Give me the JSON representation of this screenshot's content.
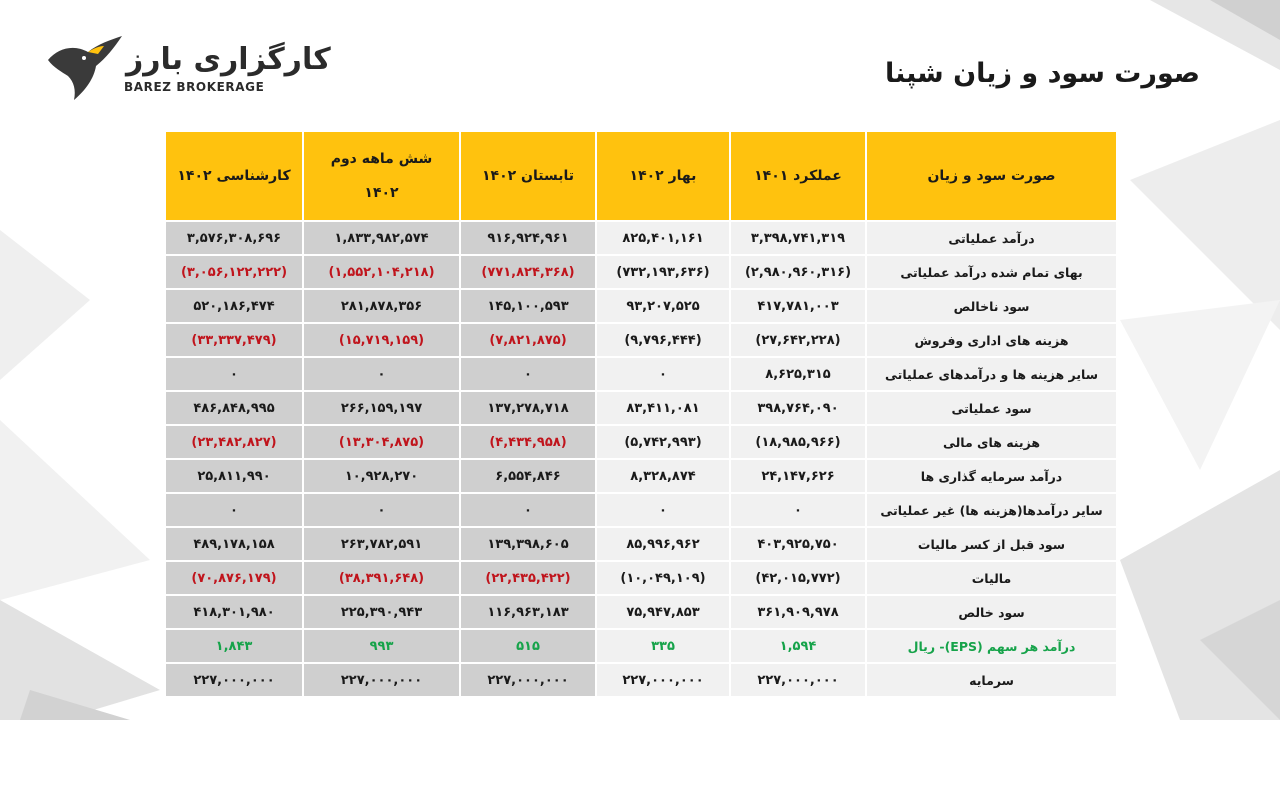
{
  "logo": {
    "name_fa": "کارگزاری بارز",
    "name_en": "BAREZ BROKERAGE"
  },
  "title": "صورت سود و زیان شپنا",
  "colors": {
    "header_bg": "#ffc20e",
    "negative": "#c0141c",
    "eps": "#16a34a",
    "shaded_cell": "#cfcfcf",
    "light_cell": "#f1f1f1"
  },
  "table": {
    "headers": {
      "label": "صورت سود و زیان",
      "col1": "عملکرد ۱۴۰۱",
      "col2": "بهار ۱۴۰۲",
      "col3": "تابستان ۱۴۰۲",
      "col4_line1": "شش ماهه دوم",
      "col4_line2": "۱۴۰۲",
      "col5": "کارشناسی ۱۴۰۲"
    },
    "rows": [
      {
        "label": "درآمد عملیاتی",
        "v1": "۳,۳۹۸,۷۴۱,۳۱۹",
        "v2": "۸۲۵,۴۰۱,۱۶۱",
        "v3": "۹۱۶,۹۲۴,۹۶۱",
        "v4": "۱,۸۳۳,۹۸۲,۵۷۴",
        "v5": "۳,۵۷۶,۳۰۸,۶۹۶"
      },
      {
        "label": "بهای تمام شده درآمد عملیاتی",
        "v1": "(۲,۹۸۰,۹۶۰,۳۱۶)",
        "v2": "(۷۳۲,۱۹۳,۶۳۶)",
        "v3": "(۷۷۱,۸۲۴,۳۶۸)",
        "v4": "(۱,۵۵۲,۱۰۴,۲۱۸)",
        "v5": "(۳,۰۵۶,۱۲۲,۲۲۲)"
      },
      {
        "label": "سود ناخالص",
        "v1": "۴۱۷,۷۸۱,۰۰۳",
        "v2": "۹۳,۲۰۷,۵۲۵",
        "v3": "۱۴۵,۱۰۰,۵۹۳",
        "v4": "۲۸۱,۸۷۸,۳۵۶",
        "v5": "۵۲۰,۱۸۶,۴۷۴"
      },
      {
        "label": "هزینه های اداری وفروش",
        "v1": "(۲۷,۶۴۲,۲۲۸)",
        "v2": "(۹,۷۹۶,۴۴۴)",
        "v3": "(۷,۸۲۱,۸۷۵)",
        "v4": "(۱۵,۷۱۹,۱۵۹)",
        "v5": "(۳۳,۳۳۷,۴۷۹)"
      },
      {
        "label": "سایر هزینه ها و درآمدهای عملیاتی",
        "v1": "۸,۶۲۵,۳۱۵",
        "v2": "۰",
        "v3": "۰",
        "v4": "۰",
        "v5": "۰"
      },
      {
        "label": "سود عملیاتی",
        "v1": "۳۹۸,۷۶۴,۰۹۰",
        "v2": "۸۳,۴۱۱,۰۸۱",
        "v3": "۱۳۷,۲۷۸,۷۱۸",
        "v4": "۲۶۶,۱۵۹,۱۹۷",
        "v5": "۴۸۶,۸۴۸,۹۹۵"
      },
      {
        "label": "هزینه های مالی",
        "v1": "(۱۸,۹۸۵,۹۶۶)",
        "v2": "(۵,۷۴۲,۹۹۳)",
        "v3": "(۴,۴۳۴,۹۵۸)",
        "v4": "(۱۳,۳۰۴,۸۷۵)",
        "v5": "(۲۳,۴۸۲,۸۲۷)"
      },
      {
        "label": "درآمد سرمایه گذاری ها",
        "v1": "۲۴,۱۴۷,۶۲۶",
        "v2": "۸,۳۲۸,۸۷۴",
        "v3": "۶,۵۵۴,۸۴۶",
        "v4": "۱۰,۹۲۸,۲۷۰",
        "v5": "۲۵,۸۱۱,۹۹۰"
      },
      {
        "label": "سایر درآمدها(هزینه ها) غیر عملیاتی",
        "v1": "۰",
        "v2": "۰",
        "v3": "۰",
        "v4": "۰",
        "v5": "۰"
      },
      {
        "label": "سود قبل از کسر مالیات",
        "v1": "۴۰۳,۹۲۵,۷۵۰",
        "v2": "۸۵,۹۹۶,۹۶۲",
        "v3": "۱۳۹,۳۹۸,۶۰۵",
        "v4": "۲۶۳,۷۸۲,۵۹۱",
        "v5": "۴۸۹,۱۷۸,۱۵۸"
      },
      {
        "label": "مالیات",
        "v1": "(۴۲,۰۱۵,۷۷۲)",
        "v2": "(۱۰,۰۴۹,۱۰۹)",
        "v3": "(۲۲,۴۳۵,۴۲۲)",
        "v4": "(۳۸,۳۹۱,۶۴۸)",
        "v5": "(۷۰,۸۷۶,۱۷۹)"
      },
      {
        "label": "سود خالص",
        "v1": "۳۶۱,۹۰۹,۹۷۸",
        "v2": "۷۵,۹۴۷,۸۵۳",
        "v3": "۱۱۶,۹۶۳,۱۸۳",
        "v4": "۲۲۵,۳۹۰,۹۴۳",
        "v5": "۴۱۸,۳۰۱,۹۸۰"
      },
      {
        "label": "درآمد هر سهم (EPS)- ریال",
        "v1": "۱,۵۹۴",
        "v2": "۳۳۵",
        "v3": "۵۱۵",
        "v4": "۹۹۳",
        "v5": "۱,۸۴۳"
      },
      {
        "label": "سرمایه",
        "v1": "۲۲۷,۰۰۰,۰۰۰",
        "v2": "۲۲۷,۰۰۰,۰۰۰",
        "v3": "۲۲۷,۰۰۰,۰۰۰",
        "v4": "۲۲۷,۰۰۰,۰۰۰",
        "v5": "۲۲۷,۰۰۰,۰۰۰"
      }
    ]
  }
}
